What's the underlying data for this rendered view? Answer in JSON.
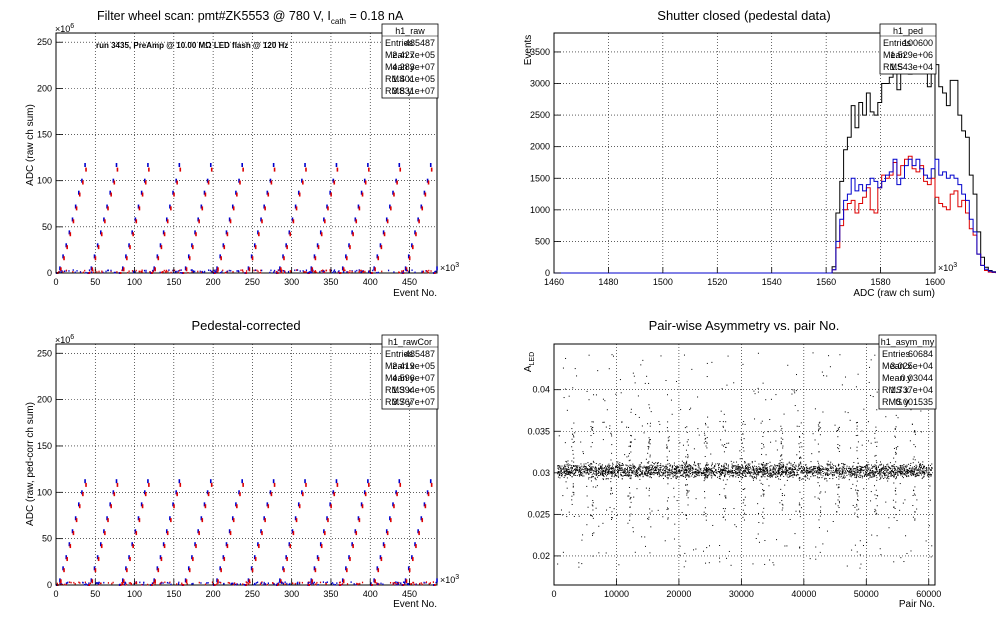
{
  "panels": [
    {
      "id": "raw",
      "title": "Filter wheel scan: pmt#ZK5553 @   780 V, I",
      "title_sub": "cath",
      "title_tail": " = 0.18 nA",
      "annotation": "run 3435, PreAmp @ 10.00 MΩ LED flash @  120 Hz",
      "ylabel": "ADC (raw ch sum)",
      "xlabel": "Event No.",
      "x_exponent": "×10",
      "x_exp_power": "3",
      "y_exponent": "×10",
      "y_exp_power": "6",
      "stats": {
        "name": "h1_raw",
        "rows": [
          [
            "Entries",
            "485487"
          ],
          [
            "Mean x",
            "2.427e+05"
          ],
          [
            "Mean y",
            "4.283e+07"
          ],
          [
            "RMS x",
            "1.401e+05"
          ],
          [
            "RMS y",
            "3.831e+07"
          ]
        ]
      }
    },
    {
      "id": "ped",
      "title": "Shutter closed (pedestal data)",
      "ylabel": "Events",
      "xlabel": "ADC (raw ch sum)",
      "x_exponent": "×10",
      "x_exp_power": "3",
      "stats": {
        "name": "h1_ped",
        "rows": [
          [
            "Entries",
            "100600"
          ],
          [
            "Mean",
            "1.529e+06"
          ],
          [
            "RMS",
            "1.543e+04"
          ]
        ]
      }
    },
    {
      "id": "cor",
      "title": "Pedestal-corrected",
      "ylabel": "ADC (raw, ped-corr ch sum)",
      "xlabel": "Event No.",
      "x_exponent": "×10",
      "x_exp_power": "3",
      "y_exponent": "×10",
      "y_exp_power": "6",
      "stats": {
        "name": "h1_rawCor",
        "rows": [
          [
            "Entries",
            "485487"
          ],
          [
            "Mean x",
            "2.419e+05"
          ],
          [
            "Mean y",
            "4.596e+07"
          ],
          [
            "RMS x",
            "1.394e+05"
          ],
          [
            "RMS y",
            "3.767e+07"
          ]
        ]
      }
    },
    {
      "id": "asym",
      "title": "Pair-wise Asymmetry vs. pair No.",
      "ylabel": "A",
      "ylabel_sub": "LED",
      "xlabel": "Pair No.",
      "stats": {
        "name": "h1_asym_my",
        "rows": [
          [
            "Entries",
            "60684"
          ],
          [
            "Mean x",
            "3.025e+04"
          ],
          [
            "Mean y",
            "0.03044"
          ],
          [
            "RMS x",
            "1.737e+04"
          ],
          [
            "RMS y",
            "0.001535"
          ]
        ]
      }
    }
  ],
  "chart_data": [
    {
      "type": "scatter",
      "title": "Filter wheel scan: pmt#ZK5553 @   780 V, Icath = 0.18 nA",
      "xlabel": "Event No. (×10^3)",
      "ylabel": "ADC (raw ch sum) (×10^6)",
      "xlim": [
        0,
        485
      ],
      "ylim": [
        0,
        260
      ],
      "x_ticks": [
        0,
        50,
        100,
        150,
        200,
        250,
        300,
        350,
        400,
        450
      ],
      "y_ticks": [
        0,
        50,
        100,
        150,
        200,
        250
      ],
      "grid": true,
      "legend": "top-right stats box",
      "series": [
        {
          "color": "#0000cc",
          "levels": [
            0,
            5,
            18,
            30,
            44,
            58,
            72,
            87,
            100,
            117
          ]
        },
        {
          "color": "#dd0000",
          "levels": [
            0,
            4,
            16,
            28,
            42,
            56,
            70,
            85,
            98,
            112
          ]
        }
      ],
      "period": 40,
      "offsets": [
        0,
        4,
        8,
        12,
        16,
        20,
        24,
        28,
        32,
        36
      ]
    },
    {
      "type": "line",
      "title": "Shutter closed (pedestal data)",
      "xlabel": "ADC (raw ch sum) (×10^3)",
      "ylabel": "Events",
      "xlim": [
        1460,
        1600
      ],
      "ylim": [
        0,
        3800
      ],
      "x_ticks": [
        1460,
        1480,
        1500,
        1520,
        1540,
        1560,
        1580,
        1600
      ],
      "y_ticks": [
        0,
        500,
        1000,
        1500,
        2000,
        2500,
        3000,
        3500
      ],
      "grid": true,
      "bin_edges_start": 1460,
      "bin_width": 1.4,
      "series": [
        {
          "color": "#000000",
          "values": [
            0,
            0,
            0,
            0,
            0,
            0,
            0,
            0,
            0,
            0,
            0,
            0,
            0,
            0,
            0,
            0,
            0,
            0,
            0,
            0,
            0,
            0,
            0,
            0,
            0,
            0,
            0,
            0,
            0,
            0,
            0,
            0,
            0,
            0,
            0,
            0,
            0,
            0,
            0,
            0,
            0,
            0,
            0,
            0,
            0,
            0,
            0,
            0,
            0,
            0,
            0,
            0,
            0,
            0,
            0,
            0,
            0,
            0,
            0,
            0,
            0,
            0,
            0,
            0,
            0,
            0,
            0,
            0,
            0,
            0,
            0,
            0,
            0,
            100,
            950,
            1450,
            1950,
            2150,
            2650,
            2300,
            2700,
            2500,
            2850,
            2550,
            2500,
            2700,
            3000,
            3000,
            3100,
            3500,
            2900,
            3350,
            3400,
            3150,
            3350,
            3500,
            3600,
            3500,
            2950,
            3250,
            3300,
            2950,
            2850,
            2650,
            3050,
            3050,
            2500,
            2250,
            2150,
            1550,
            1250,
            650,
            250,
            90,
            40,
            20,
            10,
            5,
            0,
            0,
            0,
            0,
            0,
            0,
            0,
            0,
            0,
            0,
            0,
            0,
            0,
            0,
            0,
            0,
            0,
            0,
            0,
            0,
            0,
            0,
            0,
            0,
            0,
            0,
            0,
            0,
            0,
            0,
            0,
            0,
            0,
            0
          ]
        },
        {
          "color": "#dd0000",
          "values": [
            0,
            0,
            0,
            0,
            0,
            0,
            0,
            0,
            0,
            0,
            0,
            0,
            0,
            0,
            0,
            0,
            0,
            0,
            0,
            0,
            0,
            0,
            0,
            0,
            0,
            0,
            0,
            0,
            0,
            0,
            0,
            0,
            0,
            0,
            0,
            0,
            0,
            0,
            0,
            0,
            0,
            0,
            0,
            0,
            0,
            0,
            0,
            0,
            0,
            0,
            0,
            0,
            0,
            0,
            0,
            0,
            0,
            0,
            0,
            0,
            0,
            0,
            0,
            0,
            0,
            0,
            0,
            0,
            0,
            0,
            0,
            0,
            0,
            50,
            400,
            750,
            1000,
            1100,
            1150,
            950,
            1100,
            1200,
            1350,
            1000,
            950,
            1350,
            1550,
            1500,
            1550,
            1750,
            1550,
            1700,
            1800,
            1850,
            1650,
            1600,
            1700,
            1450,
            1400,
            1500,
            1200,
            1100,
            1050,
            1000,
            1250,
            1300,
            1050,
            1150,
            950,
            700,
            600,
            300,
            120,
            40,
            15,
            8,
            4,
            0,
            0,
            0,
            0,
            0,
            0,
            0,
            0,
            0,
            0,
            0,
            0,
            0,
            0,
            0,
            0,
            0,
            0,
            0,
            0,
            0,
            0,
            0,
            0,
            0,
            0,
            0,
            0,
            0,
            0,
            0,
            0,
            0,
            0
          ]
        },
        {
          "color": "#0000cc",
          "values": [
            0,
            0,
            0,
            0,
            0,
            0,
            0,
            0,
            0,
            0,
            0,
            0,
            0,
            0,
            0,
            0,
            0,
            0,
            0,
            0,
            0,
            0,
            0,
            0,
            0,
            0,
            0,
            0,
            0,
            0,
            0,
            0,
            0,
            0,
            0,
            0,
            0,
            0,
            0,
            0,
            0,
            0,
            0,
            0,
            0,
            0,
            0,
            0,
            0,
            0,
            0,
            0,
            0,
            0,
            0,
            0,
            0,
            0,
            0,
            0,
            0,
            0,
            0,
            0,
            0,
            0,
            0,
            0,
            0,
            0,
            0,
            0,
            0,
            50,
            500,
            850,
            1150,
            1250,
            1500,
            1300,
            1400,
            1300,
            1400,
            1500,
            1450,
            1350,
            1450,
            1550,
            1600,
            1800,
            1400,
            1500,
            1700,
            1800,
            1700,
            1800,
            1650,
            1550,
            1500,
            1650,
            1800,
            1550,
            1600,
            1500,
            1550,
            1500,
            1400,
            1250,
            1150,
            850,
            650,
            300,
            120,
            60,
            30,
            15,
            8,
            4,
            0,
            0,
            0,
            0,
            0,
            0,
            0,
            0,
            0,
            0,
            0,
            0,
            0,
            0,
            0,
            0,
            0,
            0,
            0,
            0,
            0,
            0,
            0,
            0,
            0,
            0,
            0,
            0,
            0,
            0,
            0,
            0,
            0
          ]
        }
      ]
    },
    {
      "type": "scatter",
      "title": "Pedestal-corrected",
      "xlabel": "Event No. (×10^3)",
      "ylabel": "ADC (raw, ped-corr ch sum) (×10^6)",
      "xlim": [
        0,
        485
      ],
      "ylim": [
        0,
        260
      ],
      "x_ticks": [
        0,
        50,
        100,
        150,
        200,
        250,
        300,
        350,
        400,
        450
      ],
      "y_ticks": [
        0,
        50,
        100,
        150,
        200,
        250
      ],
      "grid": true,
      "legend": "top-right stats box",
      "series": [
        {
          "color": "#0000cc",
          "levels": [
            0,
            5,
            18,
            30,
            44,
            58,
            72,
            87,
            100,
            112
          ]
        },
        {
          "color": "#dd0000",
          "levels": [
            0,
            4,
            16,
            28,
            42,
            56,
            70,
            85,
            98,
            108
          ]
        }
      ],
      "period": 40,
      "offsets": [
        0,
        4,
        8,
        12,
        16,
        20,
        24,
        28,
        32,
        36
      ]
    },
    {
      "type": "scatter",
      "title": "Pair-wise Asymmetry vs. pair No.",
      "xlabel": "Pair No.",
      "ylabel": "A_LED",
      "xlim": [
        0,
        61000
      ],
      "ylim": [
        0.0165,
        0.0455
      ],
      "x_ticks": [
        0,
        10000,
        20000,
        30000,
        40000,
        50000,
        60000
      ],
      "y_ticks": [
        0.02,
        0.025,
        0.03,
        0.035,
        0.04
      ],
      "grid": true,
      "legend": "top-right stats box",
      "series": [
        {
          "color": "#000000",
          "center": 0.0303,
          "band": 0.0008,
          "spike_period": 3030
        }
      ]
    }
  ]
}
